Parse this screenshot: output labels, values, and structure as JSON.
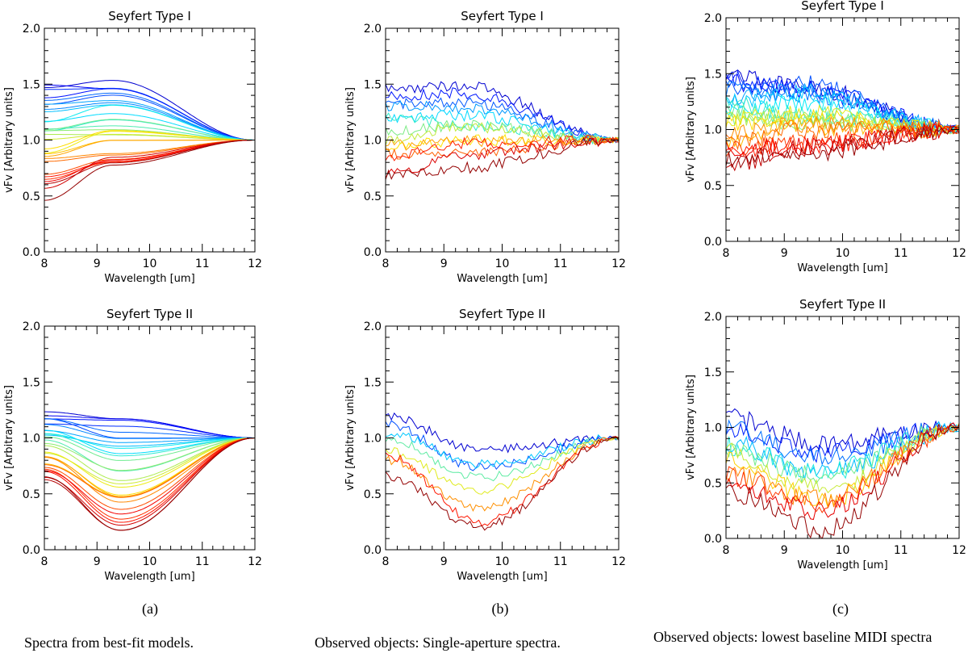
{
  "figure": {
    "captions": [
      {
        "letter": "(a)",
        "text": "Spectra from best-fit models."
      },
      {
        "letter": "(b)",
        "text": "Observed objects: Single-aperture spectra."
      },
      {
        "letter": "(c)",
        "text": "Observed objects:  lowest baseline MIDI spectra"
      }
    ]
  },
  "chart_data": [
    {
      "type": "line",
      "panel": "a",
      "row": "top",
      "title": "Seyfert Type I",
      "xlabel": "Wavelength [um]",
      "ylabel": "vFv [Arbitrary units]",
      "xlim": [
        8,
        12
      ],
      "ylim": [
        0,
        2
      ],
      "xticks": [
        8,
        9,
        10,
        11,
        12
      ],
      "yticks": [
        "0.0",
        "0.5",
        "1.0",
        "1.5",
        "2.0"
      ],
      "n_series": 30,
      "series_style": "smooth",
      "start_range": [
        0.52,
        1.5
      ],
      "mid_wavelength": 9.3,
      "mid_range": [
        0.72,
        1.54
      ],
      "end_value": 1.0,
      "noise": 0
    },
    {
      "type": "line",
      "panel": "b",
      "row": "top",
      "title": "Seyfert Type I",
      "xlabel": "Wavelength [um]",
      "ylabel": "vFv [Arbitrary units]",
      "xlim": [
        8,
        12
      ],
      "ylim": [
        0,
        2
      ],
      "xticks": [
        8,
        9,
        10,
        11,
        12
      ],
      "yticks": [
        "0.0",
        "0.5",
        "1.0",
        "1.5",
        "2.0"
      ],
      "n_series": 14,
      "series_style": "noisy",
      "start_range": [
        0.68,
        1.48
      ],
      "mid_wavelength": 9.3,
      "mid_range": [
        0.8,
        1.45
      ],
      "end_value": 1.0,
      "noise": 0.05
    },
    {
      "type": "line",
      "panel": "c",
      "row": "top",
      "title": "Seyfert Type I",
      "xlabel": "Wavelength [um]",
      "ylabel": "vFv [Arbitrary units]",
      "xlim": [
        8,
        12
      ],
      "ylim": [
        0,
        2
      ],
      "xticks": [
        8,
        9,
        10,
        11,
        12
      ],
      "yticks": [
        "0.0",
        "0.5",
        "1.0",
        "1.5",
        "2.0"
      ],
      "n_series": 22,
      "series_style": "noisy",
      "start_range": [
        0.7,
        1.52
      ],
      "mid_wavelength": 9.3,
      "mid_range": [
        0.8,
        1.45
      ],
      "end_value": 1.0,
      "noise": 0.08
    },
    {
      "type": "line",
      "panel": "a",
      "row": "bottom",
      "title": "Seyfert Type II",
      "xlabel": "Wavelength [um]",
      "ylabel": "vFv [Arbitrary units]",
      "xlim": [
        8,
        12
      ],
      "ylim": [
        0,
        2
      ],
      "xticks": [
        8,
        9,
        10,
        11,
        12
      ],
      "yticks": [
        "0.0",
        "0.5",
        "1.0",
        "1.5",
        "2.0"
      ],
      "n_series": 30,
      "series_style": "smooth",
      "start_range": [
        0.6,
        1.24
      ],
      "mid_wavelength": 9.45,
      "mid_range": [
        0.14,
        1.2
      ],
      "end_value": 1.0,
      "noise": 0
    },
    {
      "type": "line",
      "panel": "b",
      "row": "bottom",
      "title": "Seyfert Type II",
      "xlabel": "Wavelength [um]",
      "ylabel": "vFv [Arbitrary units]",
      "xlim": [
        8,
        12
      ],
      "ylim": [
        0,
        2
      ],
      "xticks": [
        8,
        9,
        10,
        11,
        12
      ],
      "yticks": [
        "0.0",
        "0.5",
        "1.0",
        "1.5",
        "2.0"
      ],
      "n_series": 8,
      "series_style": "noisy",
      "start_range": [
        0.72,
        1.2
      ],
      "mid_wavelength": 9.6,
      "mid_range": [
        0.22,
        0.88
      ],
      "end_value": 1.0,
      "noise": 0.04
    },
    {
      "type": "line",
      "panel": "c",
      "row": "bottom",
      "title": "Seyfert Type II",
      "xlabel": "Wavelength [um]",
      "ylabel": "vFv [Arbitrary units]",
      "xlim": [
        8,
        12
      ],
      "ylim": [
        0,
        2
      ],
      "xticks": [
        8,
        9,
        10,
        11,
        12
      ],
      "yticks": [
        "0.0",
        "0.5",
        "1.0",
        "1.5",
        "2.0"
      ],
      "n_series": 12,
      "series_style": "noisy",
      "start_range": [
        0.42,
        1.08
      ],
      "mid_wavelength": 9.6,
      "mid_range": [
        0.12,
        0.8
      ],
      "end_value": 1.0,
      "noise": 0.09
    }
  ]
}
